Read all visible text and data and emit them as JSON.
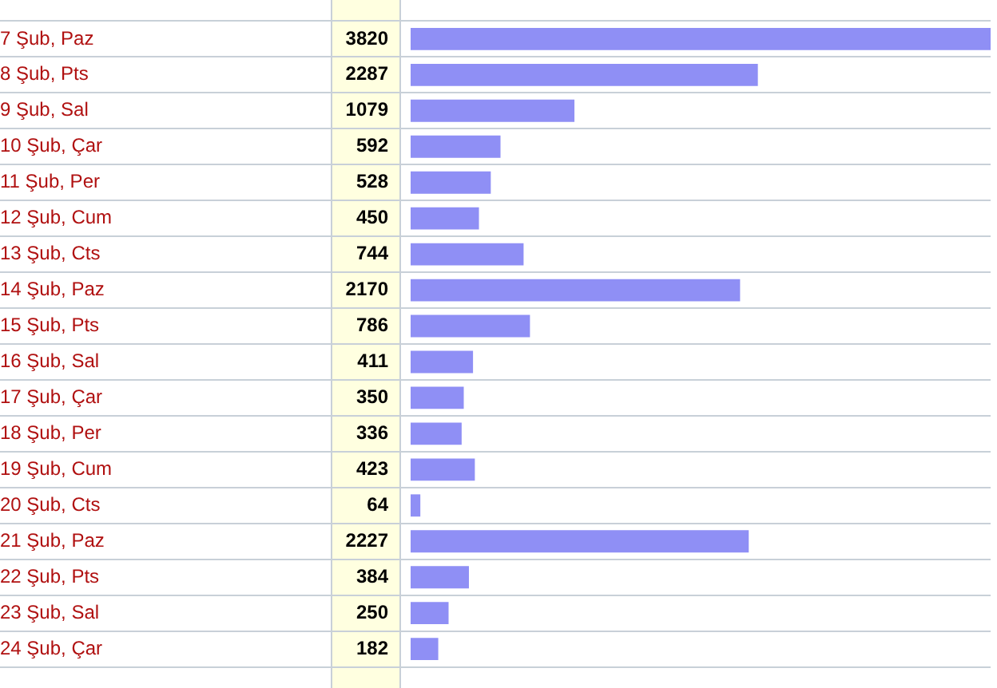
{
  "chart_data": {
    "type": "bar",
    "orientation": "horizontal",
    "categories": [
      "7 Şub, Paz",
      "8 Şub, Pts",
      "9 Şub, Sal",
      "10 Şub, Çar",
      "11 Şub, Per",
      "12 Şub, Cum",
      "13 Şub, Cts",
      "14 Şub, Paz",
      "15 Şub, Pts",
      "16 Şub, Sal",
      "17 Şub, Çar",
      "18 Şub, Per",
      "19 Şub, Cum",
      "20 Şub, Cts",
      "21 Şub, Paz",
      "22 Şub, Pts",
      "23 Şub, Sal",
      "24 Şub, Çar"
    ],
    "values": [
      3820,
      2287,
      1079,
      592,
      528,
      450,
      744,
      2170,
      786,
      411,
      350,
      336,
      423,
      64,
      2227,
      384,
      250,
      182
    ],
    "color": "#8f8ff5",
    "data_labels": true,
    "grid": "y",
    "legend": false
  }
}
